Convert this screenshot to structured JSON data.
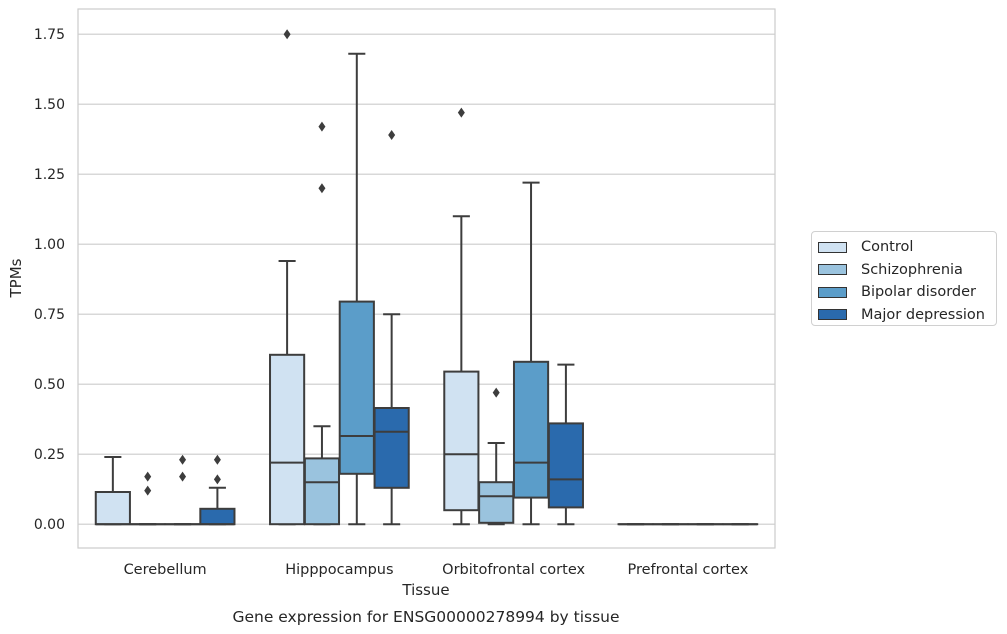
{
  "chart_data": {
    "type": "box",
    "caption": "Gene expression for ENSG00000278994 by tissue",
    "xlabel": "Tissue",
    "ylabel": "TPMs",
    "ylim": [
      -0.085,
      1.84
    ],
    "yticks": [
      "0.00",
      "0.25",
      "0.50",
      "0.75",
      "1.00",
      "1.25",
      "1.50",
      "1.75"
    ],
    "grid": "horizontal",
    "legend_position": "outside right",
    "categories": [
      "Cerebellum",
      "Hipppocampus",
      "Orbitofrontal cortex",
      "Prefrontal cortex"
    ],
    "series": [
      {
        "name": "Control",
        "color": "#d0e2f2",
        "boxes": [
          {
            "q1": 0,
            "median": 0,
            "q3": 0.115,
            "whislo": 0,
            "whishi": 0.24,
            "fliers": []
          },
          {
            "q1": 0,
            "median": 0.22,
            "q3": 0.605,
            "whislo": 0,
            "whishi": 0.94,
            "fliers": [
              1.75
            ]
          },
          {
            "q1": 0.05,
            "median": 0.25,
            "q3": 0.545,
            "whislo": 0,
            "whishi": 1.1,
            "fliers": [
              1.47
            ]
          },
          {
            "q1": 0,
            "median": 0,
            "q3": 0,
            "whislo": 0,
            "whishi": 0,
            "fliers": []
          }
        ]
      },
      {
        "name": "Schizophrenia",
        "color": "#9ac3de",
        "boxes": [
          {
            "q1": 0,
            "median": 0,
            "q3": 0,
            "whislo": 0,
            "whishi": 0,
            "fliers": [
              0.12,
              0.17
            ]
          },
          {
            "q1": 0,
            "median": 0.15,
            "q3": 0.235,
            "whislo": 0,
            "whishi": 0.35,
            "fliers": [
              1.2,
              1.42
            ]
          },
          {
            "q1": 0.005,
            "median": 0.1,
            "q3": 0.15,
            "whislo": 0,
            "whishi": 0.29,
            "fliers": [
              0.47
            ]
          },
          {
            "q1": 0,
            "median": 0,
            "q3": 0,
            "whislo": 0,
            "whishi": 0,
            "fliers": []
          }
        ]
      },
      {
        "name": "Bipolar disorder",
        "color": "#5b9dc9",
        "boxes": [
          {
            "q1": 0,
            "median": 0,
            "q3": 0,
            "whislo": 0,
            "whishi": 0,
            "fliers": [
              0.17,
              0.23
            ]
          },
          {
            "q1": 0.18,
            "median": 0.315,
            "q3": 0.795,
            "whislo": 0,
            "whishi": 1.68,
            "fliers": []
          },
          {
            "q1": 0.095,
            "median": 0.22,
            "q3": 0.58,
            "whislo": 0,
            "whishi": 1.22,
            "fliers": []
          },
          {
            "q1": 0,
            "median": 0,
            "q3": 0,
            "whislo": 0,
            "whishi": 0,
            "fliers": []
          }
        ]
      },
      {
        "name": "Major depression",
        "color": "#2a6aad",
        "boxes": [
          {
            "q1": 0,
            "median": 0,
            "q3": 0.055,
            "whislo": 0,
            "whishi": 0.13,
            "fliers": [
              0.16,
              0.23
            ]
          },
          {
            "q1": 0.13,
            "median": 0.33,
            "q3": 0.415,
            "whislo": 0,
            "whishi": 0.75,
            "fliers": [
              1.39
            ]
          },
          {
            "q1": 0.06,
            "median": 0.16,
            "q3": 0.36,
            "whislo": 0,
            "whishi": 0.57,
            "fliers": []
          },
          {
            "q1": 0,
            "median": 0,
            "q3": 0,
            "whislo": 0,
            "whishi": 0,
            "fliers": []
          }
        ]
      }
    ]
  }
}
